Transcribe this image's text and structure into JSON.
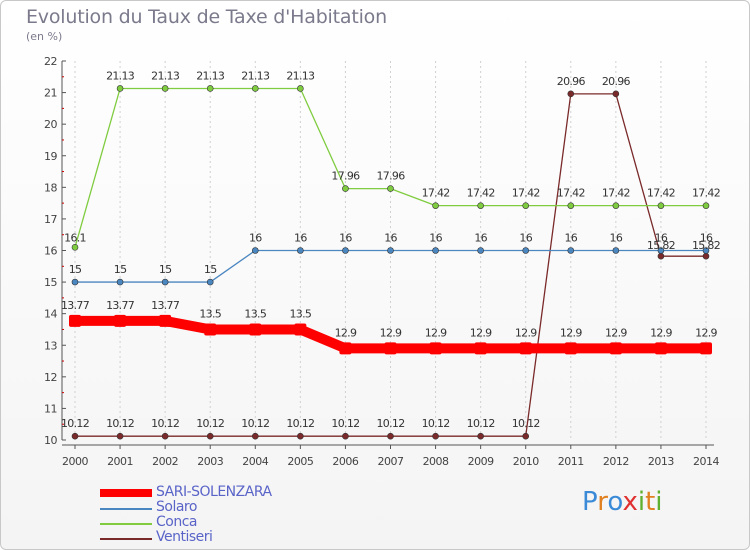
{
  "chart_data": {
    "type": "line",
    "title": "Evolution du Taux de Taxe d'Habitation",
    "subtitle": "(en %)",
    "x": [
      "2000",
      "2001",
      "2002",
      "2003",
      "2004",
      "2005",
      "2006",
      "2007",
      "2008",
      "2009",
      "2010",
      "2011",
      "2012",
      "2013",
      "2014"
    ],
    "y_ticks": [
      "10",
      "11",
      "12",
      "13",
      "14",
      "15",
      "16",
      "17",
      "18",
      "19",
      "20",
      "21",
      "22"
    ],
    "ylim": [
      10,
      22
    ],
    "grid": "vertical-dashed",
    "legend_position": "bottom-left",
    "series": [
      {
        "name": "SARI-SOLENZARA",
        "color": "#ff0000",
        "values": [
          13.77,
          13.77,
          13.77,
          13.5,
          13.5,
          13.5,
          12.9,
          12.9,
          12.9,
          12.9,
          12.9,
          12.9,
          12.9,
          12.9,
          12.9
        ],
        "labels": [
          "13.77",
          "13.77",
          "13.77",
          "13.5",
          "13.5",
          "13.5",
          "12.9",
          "12.9",
          "12.9",
          "12.9",
          "12.9",
          "12.9",
          "12.9",
          "12.9",
          "12.9"
        ]
      },
      {
        "name": "Solaro",
        "color": "#4a86c0",
        "values": [
          15,
          15,
          15,
          15,
          16,
          16,
          16,
          16,
          16,
          16,
          16,
          16,
          16,
          16,
          16
        ],
        "labels": [
          "15",
          "15",
          "15",
          "15",
          "16",
          "16",
          "16",
          "16",
          "16",
          "16",
          "16",
          "16",
          "16",
          "16",
          "16"
        ]
      },
      {
        "name": "Conca",
        "color": "#80cc40",
        "values": [
          16.1,
          21.13,
          21.13,
          21.13,
          21.13,
          21.13,
          17.96,
          17.96,
          17.42,
          17.42,
          17.42,
          17.42,
          17.42,
          17.42,
          17.42
        ],
        "labels": [
          "16.1",
          "21.13",
          "21.13",
          "21.13",
          "21.13",
          "21.13",
          "17.96",
          "17.96",
          "17.42",
          "17.42",
          "17.42",
          "17.42",
          "17.42",
          "17.42",
          "17.42"
        ]
      },
      {
        "name": "Ventiseri",
        "color": "#7a2a2a",
        "values": [
          10.12,
          10.12,
          10.12,
          10.12,
          10.12,
          10.12,
          10.12,
          10.12,
          10.12,
          10.12,
          10.12,
          20.96,
          20.96,
          15.82,
          15.82
        ],
        "labels": [
          "10.12",
          "10.12",
          "10.12",
          "10.12",
          "10.12",
          "10.12",
          "10.12",
          "10.12",
          "10.12",
          "10.12",
          "10.12",
          "20.96",
          "20.96",
          "15.82",
          "15.82"
        ]
      }
    ]
  },
  "logo": {
    "letters": [
      "P",
      "r",
      "o",
      "x",
      "i",
      "t",
      "i"
    ],
    "colors": [
      "#3a8ad8",
      "#e08020",
      "#3a8ad8",
      "#e03030",
      "#60b030",
      "#e08020",
      "#60b030"
    ]
  }
}
